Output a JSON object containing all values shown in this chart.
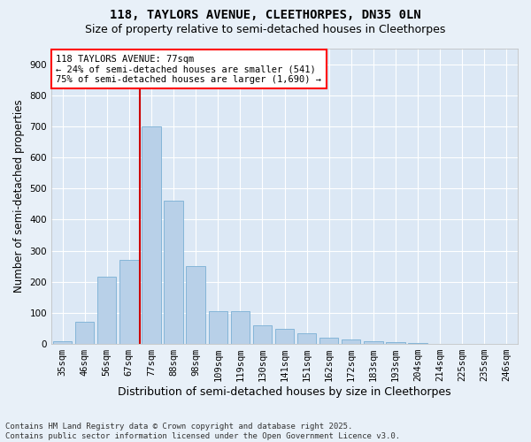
{
  "title_line1": "118, TAYLORS AVENUE, CLEETHORPES, DN35 0LN",
  "title_line2": "Size of property relative to semi-detached houses in Cleethorpes",
  "xlabel": "Distribution of semi-detached houses by size in Cleethorpes",
  "ylabel": "Number of semi-detached properties",
  "bar_color": "#b8d0e8",
  "bar_edge_color": "#7aafd4",
  "background_color": "#dce8f5",
  "grid_color": "#ffffff",
  "annotation_text": "118 TAYLORS AVENUE: 77sqm\n← 24% of semi-detached houses are smaller (541)\n75% of semi-detached houses are larger (1,690) →",
  "vline_color": "#cc0000",
  "vline_x_index": 4,
  "categories": [
    "35sqm",
    "46sqm",
    "56sqm",
    "67sqm",
    "77sqm",
    "88sqm",
    "98sqm",
    "109sqm",
    "119sqm",
    "130sqm",
    "141sqm",
    "151sqm",
    "162sqm",
    "172sqm",
    "183sqm",
    "193sqm",
    "204sqm",
    "214sqm",
    "225sqm",
    "235sqm",
    "246sqm"
  ],
  "values": [
    10,
    70,
    215,
    270,
    700,
    460,
    250,
    105,
    105,
    60,
    50,
    35,
    20,
    15,
    10,
    5,
    2,
    1,
    1,
    1,
    1
  ],
  "ylim": [
    0,
    950
  ],
  "yticks": [
    0,
    100,
    200,
    300,
    400,
    500,
    600,
    700,
    800,
    900
  ],
  "footnote": "Contains HM Land Registry data © Crown copyright and database right 2025.\nContains public sector information licensed under the Open Government Licence v3.0.",
  "title_fontsize": 10,
  "subtitle_fontsize": 9,
  "axis_label_fontsize": 8.5,
  "tick_fontsize": 7.5,
  "annotation_fontsize": 7.5,
  "footnote_fontsize": 6.5,
  "fig_bg": "#e8f0f8"
}
